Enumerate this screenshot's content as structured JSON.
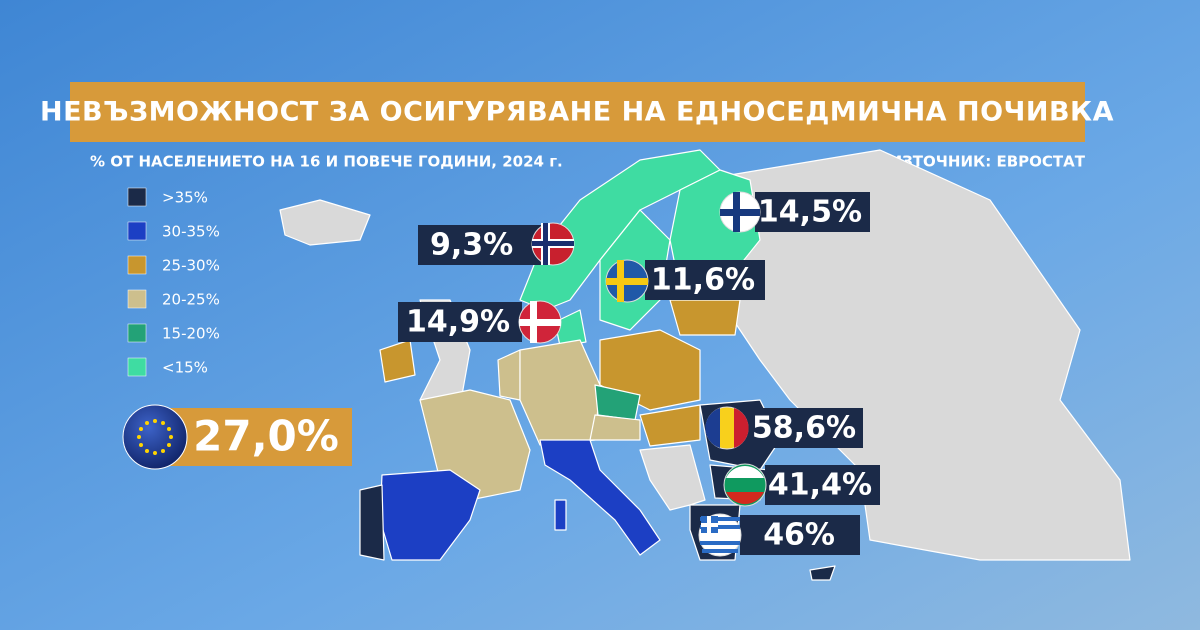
{
  "header": {
    "title": "НЕВЪЗМОЖНОСТ ЗА ОСИГУРЯВАНЕ НА ЕДНОСЕДМИЧНА ПОЧИВКА",
    "subtitle": "% ОТ НАСЕЛЕНИЕТО НА 16 И ПОВЕЧЕ ГОДИНИ, 2024 г.",
    "source": "ИЗТОЧНИК: ЕВРОСТАТ"
  },
  "legend": {
    "items": [
      {
        "label": ">35%",
        "color": "#1b2a48"
      },
      {
        "label": "30-35%",
        "color": "#1c3fc4"
      },
      {
        "label": "25-30%",
        "color": "#c8962e"
      },
      {
        "label": "20-25%",
        "color": "#cdbf8d"
      },
      {
        "label": "15-20%",
        "color": "#23a277"
      },
      {
        "label": "<15%",
        "color": "#3fdca2"
      }
    ]
  },
  "eu": {
    "label": "27,0%"
  },
  "callouts": [
    {
      "label": "14,5%"
    },
    {
      "label": "9,3%"
    },
    {
      "label": "11,6%"
    },
    {
      "label": "14,9%"
    },
    {
      "label": "58,6%"
    },
    {
      "label": "41,4%"
    },
    {
      "label": "46%"
    }
  ]
}
